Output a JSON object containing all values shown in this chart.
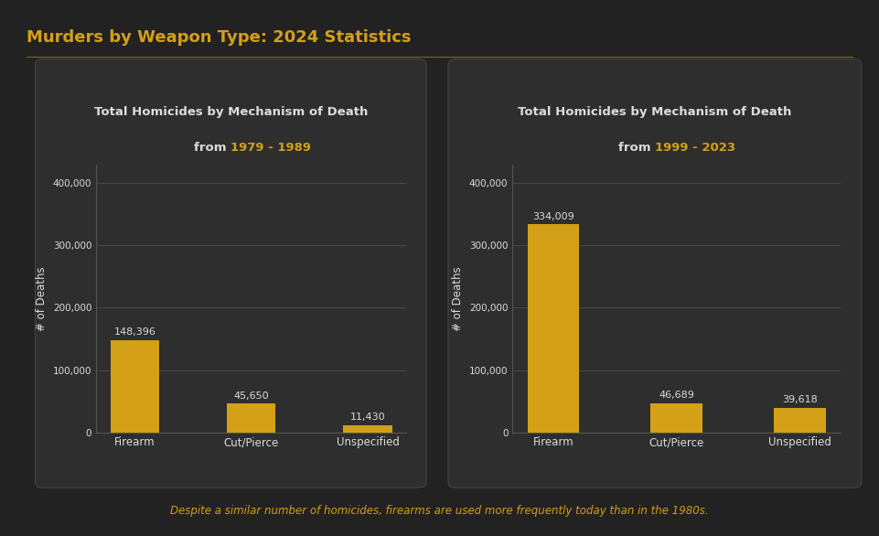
{
  "bg_color": "#222222",
  "panel_color": "#2e2e2e",
  "bar_color": "#d4a017",
  "text_color_white": "#dddddd",
  "text_color_gold": "#d4a017",
  "main_title": "Murders by Weapon Type: 2024 Statistics",
  "separator_color": "#7a6a20",
  "footnote": "Despite a similar number of homicides, firearms are used more frequently today than in the 1980s.",
  "left_chart": {
    "title_line1": "Total Homicides by Mechanism of Death",
    "title_line2_prefix": "from ",
    "title_line2_highlight": "1979 - 1989",
    "categories": [
      "Firearm",
      "Cut/Pierce",
      "Unspecified"
    ],
    "values": [
      148396,
      45650,
      11430
    ],
    "value_labels": [
      "148,396",
      "45,650",
      "11,430"
    ],
    "ylabel": "# of Deaths",
    "ylim": [
      0,
      430000
    ],
    "yticks": [
      0,
      100000,
      200000,
      300000,
      400000
    ],
    "ytick_labels": [
      "0",
      "100,000",
      "200,000",
      "300,000",
      "400,000"
    ]
  },
  "right_chart": {
    "title_line1": "Total Homicides by Mechanism of Death",
    "title_line2_prefix": "from ",
    "title_line2_highlight": "1999 - 2023",
    "categories": [
      "Firearm",
      "Cut/Pierce",
      "Unspecified"
    ],
    "values": [
      334009,
      46689,
      39618
    ],
    "value_labels": [
      "334,009",
      "46,689",
      "39,618"
    ],
    "ylabel": "# of Deaths",
    "ylim": [
      0,
      430000
    ],
    "yticks": [
      0,
      100000,
      200000,
      300000,
      400000
    ],
    "ytick_labels": [
      "0",
      "100,000",
      "200,000",
      "300,000",
      "400,000"
    ]
  }
}
